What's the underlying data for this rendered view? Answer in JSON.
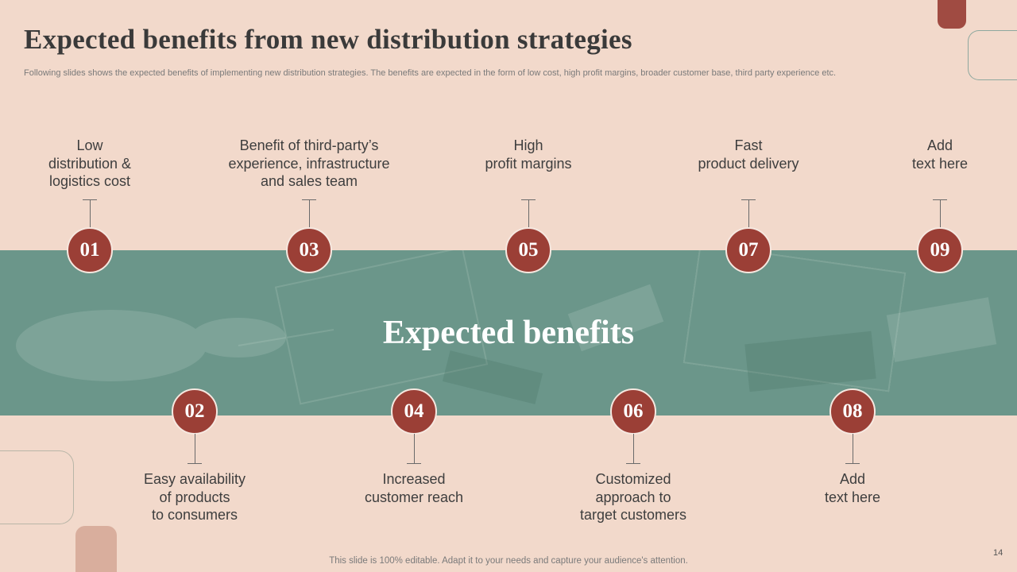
{
  "header": {
    "title": "Expected benefits from new distribution strategies",
    "subtitle": "Following slides shows the expected benefits of implementing new distribution strategies. The benefits are expected in the form of low cost, high profit margins, broader customer base, third party experience etc."
  },
  "band": {
    "title": "Expected benefits"
  },
  "steps": [
    {
      "number": "01",
      "label": "Low\ndistribution &\nlogistics cost"
    },
    {
      "number": "02",
      "label": "Easy availability\nof products\nto consumers"
    },
    {
      "number": "03",
      "label": "Benefit of third-party’s\nexperience, infrastructure\nand sales team"
    },
    {
      "number": "04",
      "label": "Increased\ncustomer reach"
    },
    {
      "number": "05",
      "label": "High\nprofit margins"
    },
    {
      "number": "06",
      "label": "Customized\napproach to\ntarget customers"
    },
    {
      "number": "07",
      "label": "Fast\nproduct delivery"
    },
    {
      "number": "08",
      "label": "Add\ntext here"
    },
    {
      "number": "09",
      "label": "Add\ntext here"
    }
  ],
  "footer": {
    "note": "This slide is 100% editable. Adapt it to your needs and capture your audience's attention.",
    "page_number": "14"
  },
  "colors": {
    "background": "#f2d9cb",
    "band": "#6b968a",
    "accent": "#9b3f36"
  }
}
